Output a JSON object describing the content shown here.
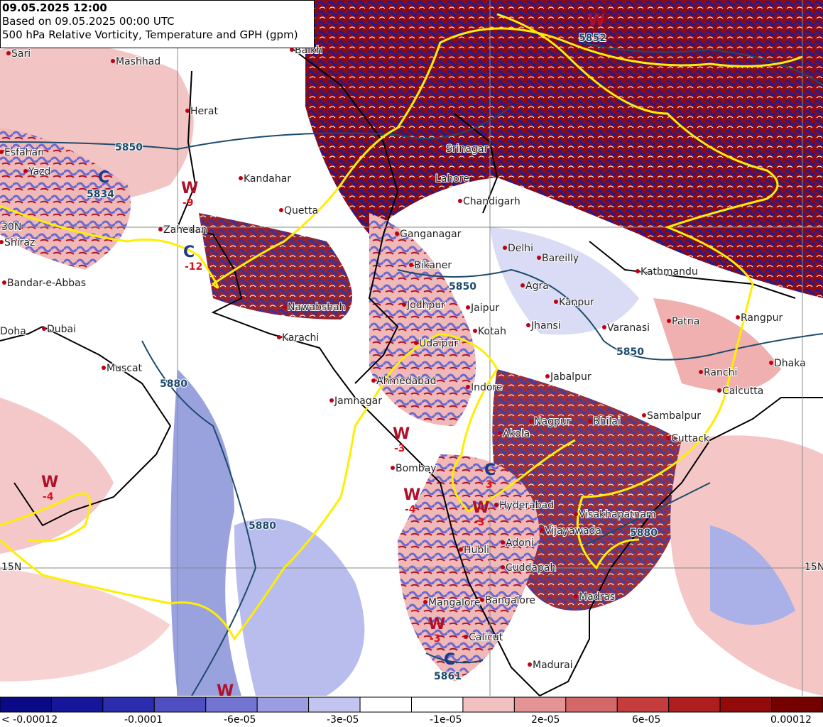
{
  "header": {
    "date": "09.05.2025 12:00",
    "based_on": "Based on 09.05.2025 00:00 UTC",
    "title": "500 hPa Relative Vorticity, Temperature and GPH (gpm)"
  },
  "cities": [
    "Sari",
    "Mashhad",
    "Balkh",
    "Herat",
    "Esfahan",
    "Yazd",
    "Kandahar",
    "Quetta",
    "Shiraz",
    "Zahedan",
    "Bandar-e-Abbas",
    "Doha",
    "Dubai",
    "Muscat",
    "Karachi",
    "Nawabshah",
    "Srinagar",
    "Lahore",
    "Chandigarh",
    "Ganganagar",
    "Bikaner",
    "Jodhpur",
    "Jaipur",
    "Kotah",
    "Udaipur",
    "Ahmedabad",
    "Jamnagar",
    "Indore",
    "Delhi",
    "Bareilly",
    "Agra",
    "Kanpur",
    "Jhansi",
    "Varanasi",
    "Patna",
    "Kathmandu",
    "Rangpur",
    "Dhaka",
    "Ranchi",
    "Calcutta",
    "Jabalpur",
    "Nagpur",
    "Bhilai",
    "Sambalpur",
    "Cuttack",
    "Akola",
    "Bombay",
    "Hyderabad",
    "Visakhapatnam",
    "Vijayawada",
    "Hubli",
    "Adoni",
    "Cuddapah",
    "Madras",
    "Mangalore",
    "Bangalore",
    "Calicut",
    "Madurai"
  ],
  "grid_labels": [
    "30N",
    "15N",
    "15N"
  ],
  "contour_labels": [
    "5850",
    "5834",
    "5852",
    "5850",
    "5850",
    "5880",
    "5880",
    "5880",
    "5861"
  ],
  "markers": [
    {
      "letter": "W"
    },
    {
      "letter": "C"
    },
    {
      "letter": "W",
      "value": "-9"
    },
    {
      "letter": "C",
      "value": "-12"
    },
    {
      "letter": "W",
      "value": "-4"
    },
    {
      "letter": "W",
      "value": "-3"
    },
    {
      "letter": "W",
      "value": "-4"
    },
    {
      "letter": "W",
      "value": "-3"
    },
    {
      "letter": "C",
      "value": "3"
    },
    {
      "letter": "W",
      "value": "-3"
    },
    {
      "letter": "C"
    },
    {
      "letter": "W"
    }
  ],
  "colorbar": {
    "colors": [
      "#0a0a86",
      "#16169a",
      "#2c2cae",
      "#4f4fc2",
      "#7373d2",
      "#9c9ce2",
      "#c4c4f0",
      "#ffffff",
      "#ffffff",
      "#f2c0c0",
      "#e49494",
      "#d46868",
      "#c43c3c",
      "#ae1e1e",
      "#920a0a",
      "#740000"
    ],
    "labels": [
      "< -0.00012",
      "-0.0001",
      "-6e-05",
      "-3e-05",
      "-1e-05",
      "2e-05",
      "6e-05",
      "0.00012"
    ]
  }
}
